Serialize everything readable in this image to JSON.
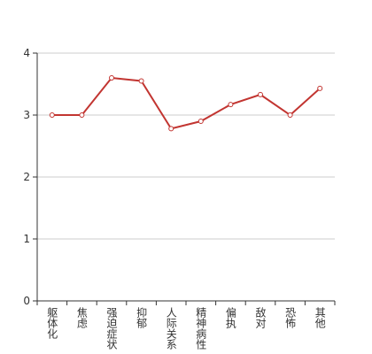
{
  "chart_data": {
    "type": "line",
    "categories": [
      "躯体化",
      "焦虑",
      "强迫症状",
      "抑郁",
      "人际关系",
      "精神病性",
      "偏执",
      "敌对",
      "恐怖",
      "其他"
    ],
    "values": [
      3.0,
      3.0,
      3.6,
      3.55,
      2.78,
      2.9,
      3.17,
      3.33,
      3.0,
      3.43
    ],
    "color": "#c23531",
    "ylim": [
      0,
      4
    ],
    "yticks": [
      0,
      1,
      2,
      3,
      4
    ],
    "grid": true
  }
}
